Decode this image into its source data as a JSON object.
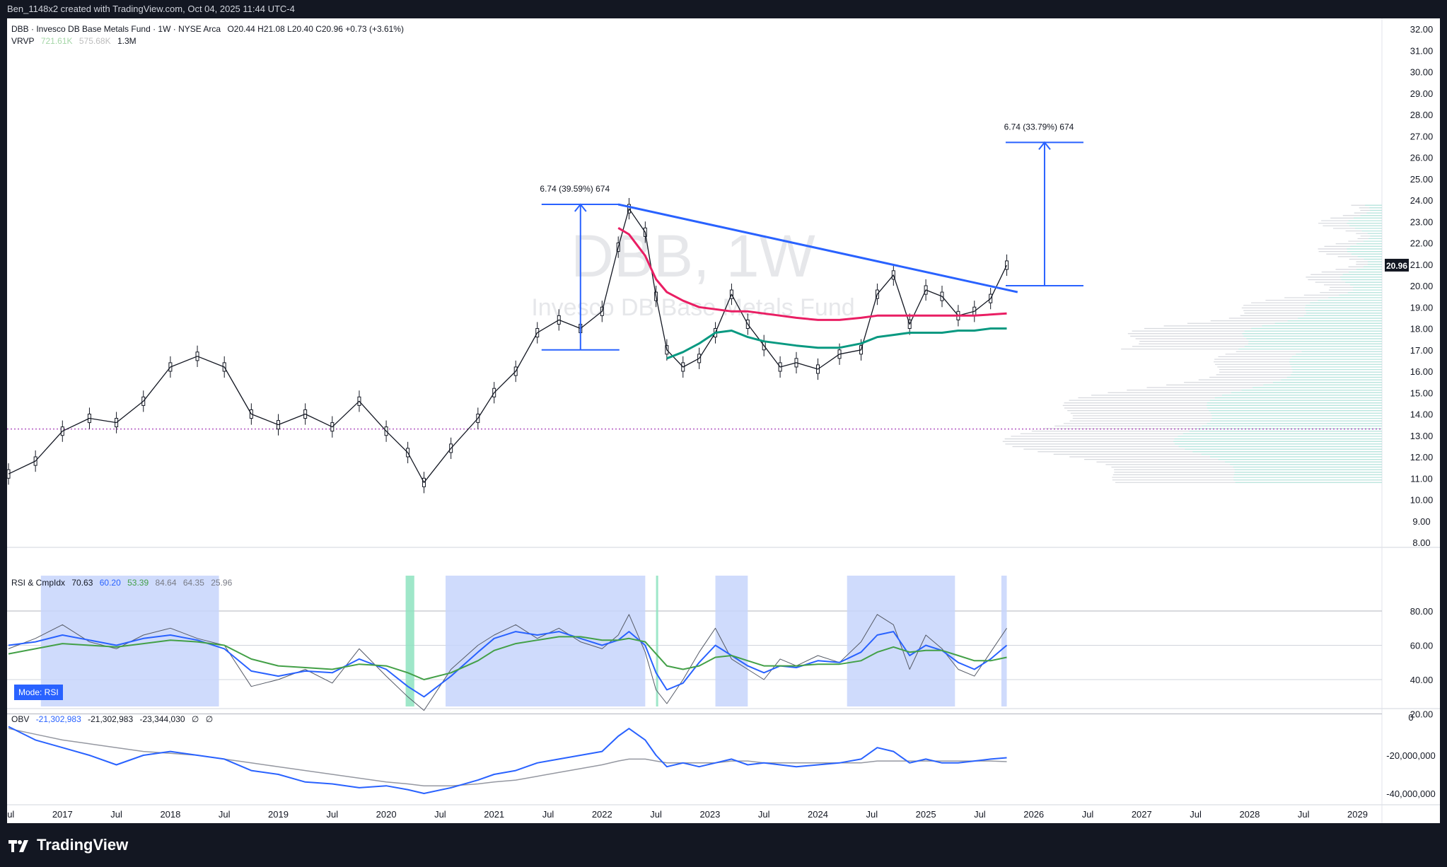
{
  "topbar": {
    "caption": "Ben_1148x2 created with TradingView.com, Oct 04, 2025 11:44 UTC-4"
  },
  "legend": {
    "main": "DBB · Invesco DB Base Metals Fund · 1W · NYSE Arca",
    "ohlc": "O20.44  H21.08  L20.40  C20.96  +0.73 (+3.61%)",
    "vrvp_name": "VRVP",
    "vrvp_v1": "721.61K",
    "vrvp_v2": "575.68K",
    "vrvp_v3": "1.3M",
    "rsi_name": "RSI & CmpIdx",
    "rsi_v1": "70.63",
    "rsi_v2": "60.20",
    "rsi_v3": "53.39",
    "rsi_v4": "84.64",
    "rsi_v5": "64.35",
    "rsi_v6": "25.96",
    "mode_badge": "Mode: RSI",
    "obv_name": "OBV",
    "obv_v1": "-21,302,983",
    "obv_v2": "-21,302,983",
    "obv_v3": "-23,344,030",
    "obv_v4": "∅",
    "obv_v5": "∅"
  },
  "watermark": {
    "symbol": "DBB, 1W",
    "name": "Invesco DB Base Metals Fund"
  },
  "annotations": {
    "measure_left": "6.74 (39.59%) 674",
    "measure_right": "6.74 (33.79%) 674"
  },
  "price_badge": "20.96",
  "footer": {
    "brand": "TradingView"
  },
  "colors": {
    "ma_red": "#e91e63",
    "ma_green": "#089981",
    "trendline": "#2962ff",
    "rsi_blue": "#2962ff",
    "rsi_green": "#43a047",
    "obv_pink": "#e91e63",
    "obv_blue": "#2962ff"
  },
  "chart_data": [
    {
      "type": "line",
      "title": "DBB · Invesco DB Base Metals Fund · 1W · NYSE Arca",
      "y_ticks": [
        "32.00",
        "31.00",
        "30.00",
        "29.00",
        "28.00",
        "27.00",
        "26.00",
        "25.00",
        "24.00",
        "23.00",
        "22.00",
        "21.00",
        "20.00",
        "19.00",
        "18.00",
        "17.00",
        "16.00",
        "15.00",
        "14.00",
        "13.00",
        "12.00",
        "11.00",
        "10.00",
        "9.00",
        "8.00"
      ],
      "x_ticks": [
        "Jul",
        "2017",
        "Jul",
        "2018",
        "Jul",
        "2019",
        "Jul",
        "2020",
        "Jul",
        "2021",
        "Jul",
        "2022",
        "Jul",
        "2023",
        "Jul",
        "2024",
        "Jul",
        "2025",
        "Jul",
        "2026",
        "Jul",
        "2027",
        "Jul",
        "2028",
        "Jul",
        "2029"
      ],
      "ylim": [
        8,
        32
      ],
      "x": [
        2016.5,
        2016.75,
        2017.0,
        2017.25,
        2017.5,
        2017.75,
        2018.0,
        2018.25,
        2018.5,
        2018.75,
        2019.0,
        2019.25,
        2019.5,
        2019.75,
        2020.0,
        2020.2,
        2020.35,
        2020.6,
        2020.85,
        2021.0,
        2021.2,
        2021.4,
        2021.6,
        2021.8,
        2022.0,
        2022.15,
        2022.25,
        2022.4,
        2022.5,
        2022.6,
        2022.75,
        2022.9,
        2023.05,
        2023.2,
        2023.35,
        2023.5,
        2023.65,
        2023.8,
        2024.0,
        2024.2,
        2024.4,
        2024.55,
        2024.7,
        2024.85,
        2025.0,
        2025.15,
        2025.3,
        2025.45,
        2025.6,
        2025.75
      ],
      "series": [
        {
          "values": [
            11.2,
            11.8,
            13.2,
            13.8,
            13.6,
            14.6,
            16.2,
            16.7,
            16.2,
            14.0,
            13.5,
            14.0,
            13.4,
            14.6,
            13.2,
            12.2,
            10.8,
            12.4,
            13.8,
            15.0,
            16.0,
            17.8,
            18.4,
            18.0,
            18.8,
            21.8,
            23.6,
            22.5,
            19.5,
            17.0,
            16.2,
            16.6,
            17.8,
            19.6,
            18.2,
            17.2,
            16.2,
            16.4,
            16.1,
            16.8,
            17.0,
            19.6,
            20.5,
            18.2,
            19.8,
            19.5,
            18.6,
            18.8,
            19.4,
            20.96
          ]
        },
        {
          "name": "",
          "values": [
            null,
            null,
            null,
            null,
            null,
            null,
            null,
            null,
            null,
            null,
            null,
            null,
            null,
            null,
            null,
            null,
            null,
            null,
            null,
            null,
            null,
            null,
            null,
            null,
            null,
            22.7,
            22.4,
            21.4,
            20.3,
            19.7,
            19.3,
            19.0,
            18.9,
            18.8,
            18.8,
            18.7,
            18.6,
            18.5,
            18.4,
            18.4,
            18.5,
            18.6,
            18.6,
            18.6,
            18.6,
            18.6,
            18.6,
            18.6,
            18.65,
            18.7
          ]
        },
        {
          "name": "",
          "values": [
            null,
            null,
            null,
            null,
            null,
            null,
            null,
            null,
            null,
            null,
            null,
            null,
            null,
            null,
            null,
            null,
            null,
            null,
            null,
            null,
            null,
            null,
            null,
            null,
            null,
            null,
            null,
            null,
            null,
            16.6,
            16.9,
            17.3,
            17.8,
            17.9,
            17.6,
            17.4,
            17.3,
            17.2,
            17.1,
            17.1,
            17.3,
            17.6,
            17.7,
            17.8,
            17.8,
            17.8,
            17.9,
            17.9,
            18.0,
            18.0
          ]
        }
      ],
      "trendline": {
        "x": [
          2022.15,
          2025.85
        ],
        "y": [
          23.8,
          19.7
        ]
      },
      "measure_left": {
        "x": 2021.8,
        "y_from": 17.0,
        "y_to": 23.8,
        "label": "6.74 (39.59%) 674"
      },
      "measure_right": {
        "x": 2026.1,
        "y_from": 20.0,
        "y_to": 26.7,
        "label": "6.74 (33.79%) 674"
      },
      "hline_dotted": 13.3,
      "last_price": 20.96
    },
    {
      "type": "line",
      "title": "RSI & CmpIdx",
      "y_ticks": [
        "80.00",
        "60.00",
        "40.00",
        "20.00"
      ],
      "ylim": [
        10,
        90
      ],
      "x": [
        2016.5,
        2016.75,
        2017.0,
        2017.25,
        2017.5,
        2017.75,
        2018.0,
        2018.25,
        2018.5,
        2018.75,
        2019.0,
        2019.25,
        2019.5,
        2019.75,
        2020.0,
        2020.2,
        2020.35,
        2020.6,
        2020.85,
        2021.0,
        2021.2,
        2021.4,
        2021.6,
        2021.8,
        2022.0,
        2022.15,
        2022.25,
        2022.4,
        2022.5,
        2022.6,
        2022.75,
        2022.9,
        2023.05,
        2023.2,
        2023.35,
        2023.5,
        2023.65,
        2023.8,
        2024.0,
        2024.2,
        2024.4,
        2024.55,
        2024.7,
        2024.85,
        2025.0,
        2025.15,
        2025.3,
        2025.45,
        2025.6,
        2025.75
      ],
      "series": [
        {
          "values": [
            58,
            64,
            72,
            62,
            58,
            66,
            70,
            64,
            60,
            36,
            40,
            46,
            38,
            58,
            42,
            30,
            22,
            46,
            60,
            66,
            72,
            64,
            70,
            62,
            58,
            66,
            78,
            56,
            34,
            26,
            40,
            56,
            70,
            52,
            46,
            40,
            52,
            48,
            54,
            50,
            62,
            78,
            72,
            46,
            66,
            58,
            46,
            42,
            56,
            70
          ]
        },
        {
          "values": [
            60,
            62,
            66,
            63,
            60,
            64,
            66,
            63,
            58,
            45,
            42,
            45,
            44,
            52,
            46,
            36,
            30,
            42,
            56,
            64,
            68,
            66,
            68,
            64,
            60,
            63,
            68,
            60,
            44,
            34,
            38,
            50,
            60,
            54,
            48,
            44,
            48,
            47,
            51,
            50,
            56,
            66,
            68,
            54,
            60,
            57,
            50,
            46,
            52,
            60
          ]
        },
        {
          "values": [
            55,
            58,
            61,
            60,
            59,
            61,
            63,
            62,
            60,
            52,
            48,
            47,
            46,
            49,
            48,
            44,
            40,
            44,
            51,
            57,
            61,
            63,
            65,
            65,
            63,
            63,
            64,
            62,
            55,
            48,
            46,
            48,
            53,
            54,
            51,
            48,
            48,
            48,
            49,
            49,
            51,
            56,
            59,
            56,
            57,
            57,
            54,
            51,
            51,
            53
          ]
        }
      ]
    },
    {
      "type": "line",
      "title": "OBV",
      "y_ticks": [
        "0",
        "-20,000,000",
        "-40,000,000"
      ],
      "ylim": [
        -42000000,
        2000000
      ],
      "x": [
        2016.5,
        2016.75,
        2017.0,
        2017.25,
        2017.5,
        2017.75,
        2018.0,
        2018.25,
        2018.5,
        2018.75,
        2019.0,
        2019.25,
        2019.5,
        2019.75,
        2020.0,
        2020.2,
        2020.35,
        2020.6,
        2020.85,
        2021.0,
        2021.2,
        2021.4,
        2021.6,
        2021.8,
        2022.0,
        2022.15,
        2022.25,
        2022.4,
        2022.5,
        2022.6,
        2022.75,
        2022.9,
        2023.05,
        2023.2,
        2023.35,
        2023.5,
        2023.65,
        2023.8,
        2024.0,
        2024.2,
        2024.4,
        2024.55,
        2024.7,
        2024.85,
        2025.0,
        2025.15,
        2025.3,
        2025.45,
        2025.6,
        2025.75
      ],
      "series": [
        {
          "values": [
            -5000000,
            -12000000,
            -16000000,
            -20000000,
            -25000000,
            -20000000,
            -18000000,
            -20000000,
            -22000000,
            -28000000,
            -30000000,
            -34000000,
            -35000000,
            -37000000,
            -36000000,
            -38000000,
            -40000000,
            -37000000,
            -33000000,
            -30000000,
            -28000000,
            -24000000,
            -22000000,
            -20000000,
            -18000000,
            -10000000,
            -6000000,
            -12000000,
            -20000000,
            -26000000,
            -24000000,
            -26000000,
            -24000000,
            -22000000,
            -25000000,
            -24000000,
            -25000000,
            -26000000,
            -25000000,
            -24000000,
            -22000000,
            -16000000,
            -18000000,
            -24000000,
            -22000000,
            -24000000,
            -24000000,
            -23000000,
            -22000000,
            -21302983
          ]
        },
        {
          "values": [
            -6000000,
            -9000000,
            -12000000,
            -14000000,
            -16000000,
            -18000000,
            -19000000,
            -20000000,
            -22000000,
            -24000000,
            -26000000,
            -28000000,
            -30000000,
            -32000000,
            -34000000,
            -35000000,
            -36000000,
            -36000000,
            -35000000,
            -34000000,
            -33000000,
            -31000000,
            -29000000,
            -27000000,
            -25000000,
            -23000000,
            -22000000,
            -22000000,
            -23000000,
            -24000000,
            -24000000,
            -24000000,
            -24000000,
            -23000000,
            -23000000,
            -24000000,
            -24000000,
            -24000000,
            -24000000,
            -24000000,
            -24000000,
            -23000000,
            -23000000,
            -23000000,
            -23000000,
            -23000000,
            -23000000,
            -23000000,
            -23000000,
            -23344030
          ]
        }
      ]
    }
  ]
}
